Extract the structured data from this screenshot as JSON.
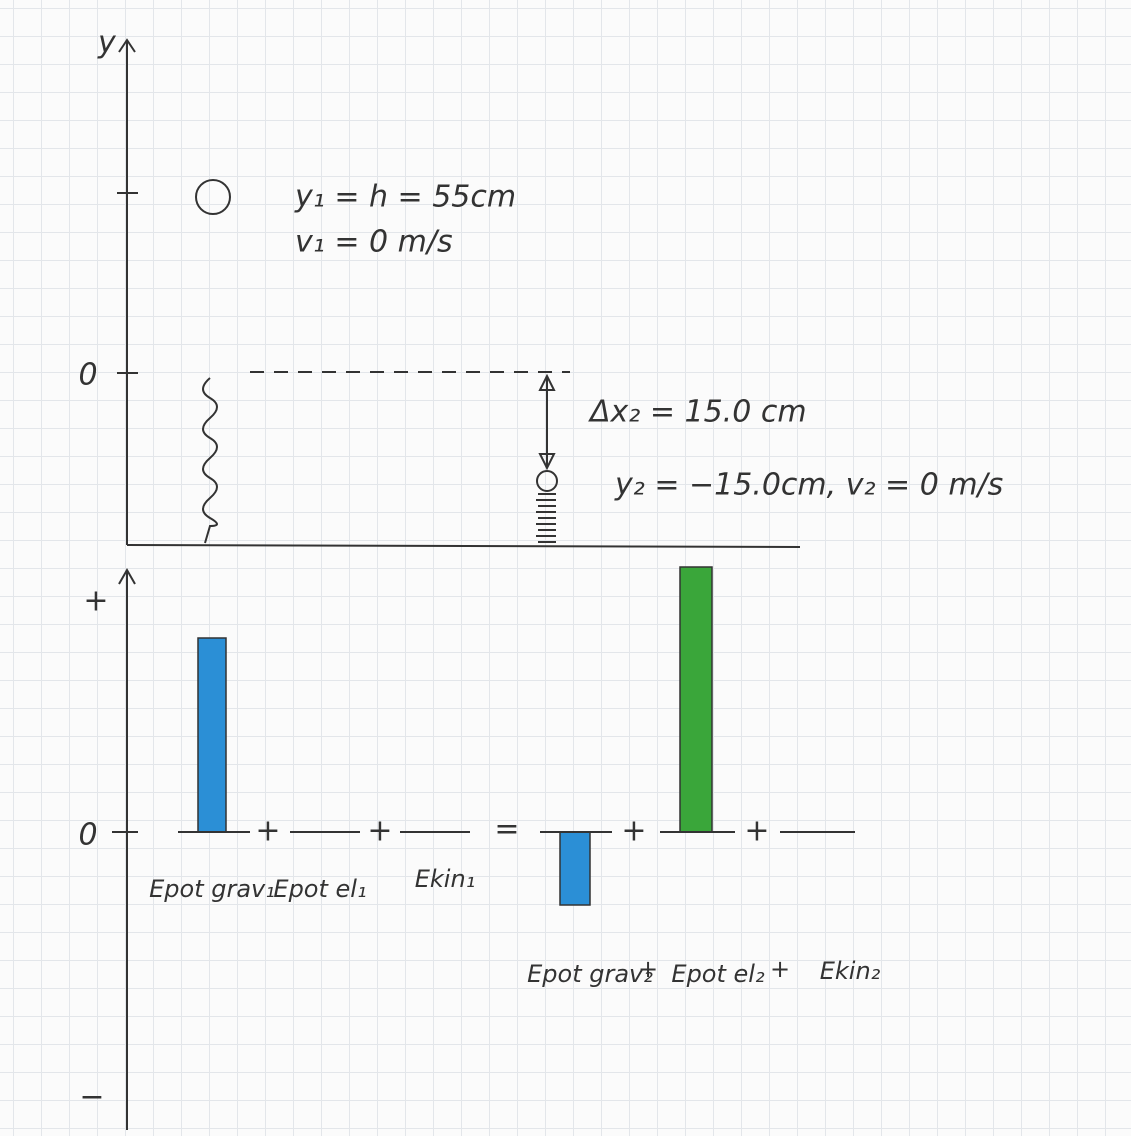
{
  "top_axis": {
    "label": "y",
    "zero": "0"
  },
  "state1": {
    "height": "y₁ = h = 55cm",
    "velocity": "v₁ = 0 m/s"
  },
  "state2": {
    "compression": "Δx₂ = 15.0 cm",
    "position": "y₂ = −15.0cm, v₂ = 0 m/s"
  },
  "energy_axis": {
    "plus": "+",
    "zero": "0",
    "minus": "−"
  },
  "left_terms": [
    "Epot grav₁",
    "Epot el₁",
    "Ekin₁"
  ],
  "right_terms": [
    "Epot grav₂",
    "Epot el₂",
    "Ekin₂"
  ],
  "operators": [
    "+",
    "+",
    "=",
    "+",
    "+"
  ],
  "label_operators": [
    "+",
    "+"
  ]
}
